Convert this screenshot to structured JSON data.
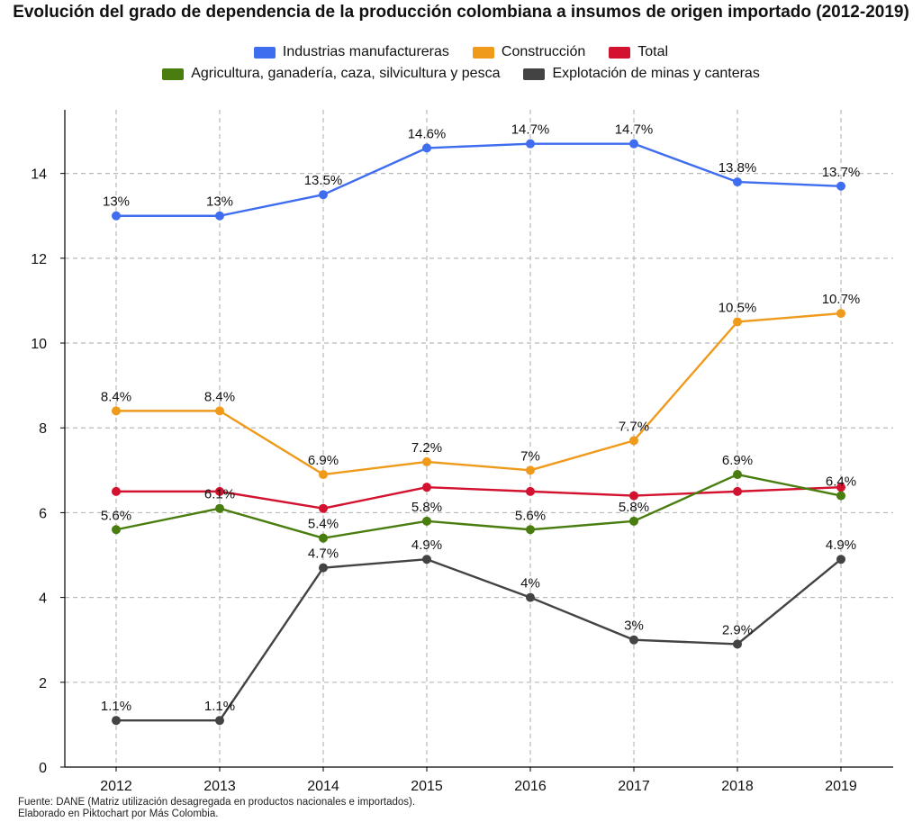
{
  "chart_data": {
    "type": "line",
    "title": "Evolución del grado de dependencia de la producción colombiana a insumos de origen importado (2012-2019)",
    "xlabel": "",
    "ylabel": "",
    "x": [
      "2012",
      "2013",
      "2014",
      "2015",
      "2016",
      "2017",
      "2018",
      "2019"
    ],
    "ylim": [
      0,
      15.5
    ],
    "yticks": [
      0,
      2,
      4,
      6,
      8,
      10,
      12,
      14
    ],
    "grid": true,
    "legend_position": "top",
    "series": [
      {
        "name": "Industrias manufactureras",
        "color": "#3f6df0",
        "values": [
          13,
          13,
          13.5,
          14.6,
          14.7,
          14.7,
          13.8,
          13.7
        ],
        "labels": [
          "13%",
          "13%",
          "13.5%",
          "14.6%",
          "14.7%",
          "14.7%",
          "13.8%",
          "13.7%"
        ]
      },
      {
        "name": "Construcción",
        "color": "#ef9a1b",
        "values": [
          8.4,
          8.4,
          6.9,
          7.2,
          7.0,
          7.7,
          10.5,
          10.7
        ],
        "labels": [
          "8.4%",
          "8.4%",
          "6.9%",
          "7.2%",
          "7%",
          "7.7%",
          "10.5%",
          "10.7%"
        ]
      },
      {
        "name": "Total",
        "color": "#d2122e",
        "values": [
          6.5,
          6.5,
          6.1,
          6.6,
          6.5,
          6.4,
          6.5,
          6.6
        ],
        "labels": []
      },
      {
        "name": "Agricultura, ganadería, caza, silvicultura y pesca",
        "color": "#4a7d10",
        "values": [
          5.6,
          6.1,
          5.4,
          5.8,
          5.6,
          5.8,
          6.9,
          6.4
        ],
        "labels": [
          "5.6%",
          "6.1%",
          "5.4%",
          "5.8%",
          "5.6%",
          "5.8%",
          "6.9%",
          "6.4%"
        ]
      },
      {
        "name": "Explotación de minas y canteras",
        "color": "#434343",
        "values": [
          1.1,
          1.1,
          4.7,
          4.9,
          4.0,
          3.0,
          2.9,
          4.9
        ],
        "labels": [
          "1.1%",
          "1.1%",
          "4.7%",
          "4.9%",
          "4%",
          "3%",
          "2.9%",
          "4.9%"
        ]
      }
    ]
  },
  "legend_rows": [
    [
      0,
      1,
      2
    ],
    [
      3,
      4
    ]
  ],
  "source_lines": [
    "Fuente: DANE (Matriz utilización desagregada en productos nacionales e importados).",
    "Elaborado en Piktochart por Más Colombia."
  ]
}
